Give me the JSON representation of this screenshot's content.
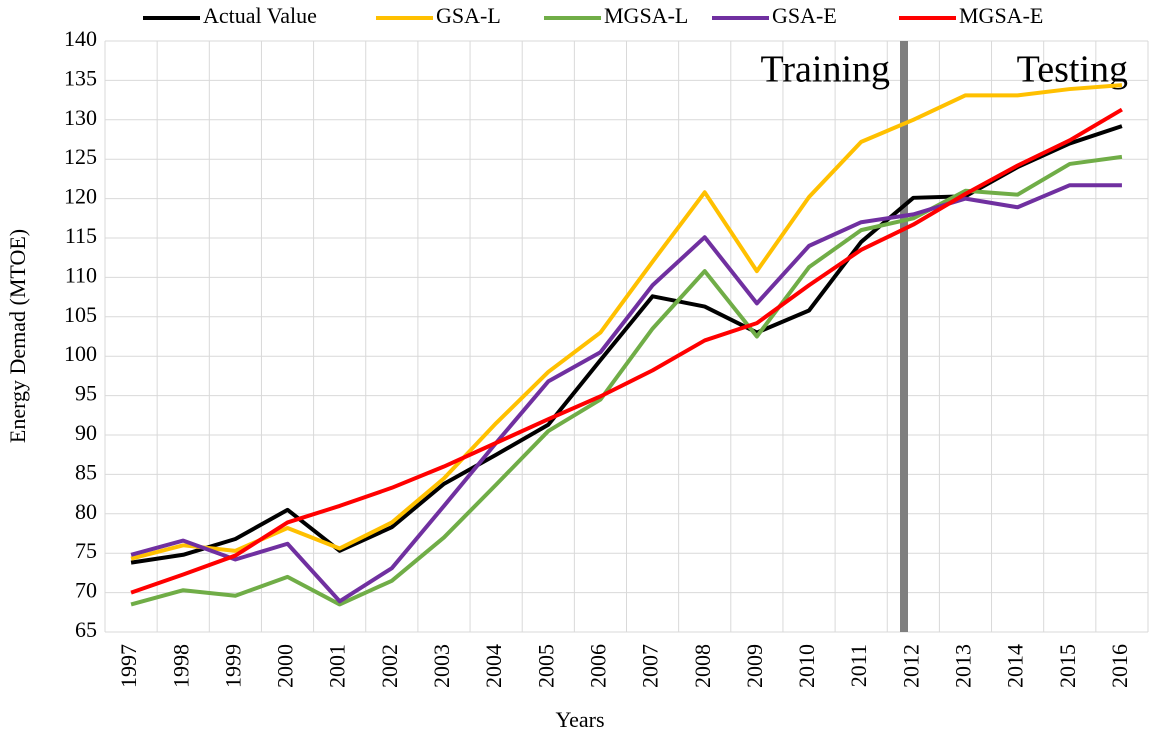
{
  "chart_data": {
    "type": "line",
    "x_label": "Years",
    "y_label": "Energy Demad (MTOE)",
    "annotations": [
      "Training",
      "Testing"
    ],
    "categories": [
      "1997",
      "1998",
      "1999",
      "2000",
      "2001",
      "2002",
      "2003",
      "2004",
      "2005",
      "2006",
      "2007",
      "2008",
      "2009",
      "2010",
      "2011",
      "2012",
      "2013",
      "2014",
      "2015",
      "2016"
    ],
    "series": [
      {
        "name": "Actual Value",
        "color": "#000000",
        "values": [
          73.8,
          74.8,
          76.8,
          80.5,
          75.3,
          78.3,
          83.8,
          87.5,
          91.3,
          99.5,
          107.6,
          106.3,
          103.0,
          105.8,
          114.5,
          120.1,
          120.3,
          124.0,
          127.0,
          129.2
        ]
      },
      {
        "name": "GSA-L",
        "color": "#ffc000",
        "values": [
          74.3,
          76.0,
          75.3,
          78.2,
          75.6,
          78.9,
          84.5,
          91.5,
          98.0,
          103.0,
          112.0,
          120.8,
          110.8,
          120.2,
          127.2,
          130.0,
          133.1,
          133.1,
          133.9,
          134.4
        ]
      },
      {
        "name": "MGSA-L",
        "color": "#70ad47",
        "values": [
          68.5,
          70.3,
          69.6,
          72.0,
          68.5,
          71.5,
          77.0,
          83.7,
          90.5,
          94.5,
          103.5,
          110.8,
          102.5,
          111.3,
          116.0,
          117.5,
          121.0,
          120.5,
          124.4,
          125.3
        ]
      },
      {
        "name": "GSA-E",
        "color": "#7030a0",
        "values": [
          74.8,
          76.6,
          74.2,
          76.2,
          68.9,
          73.1,
          81.0,
          89.0,
          96.8,
          100.5,
          109.0,
          115.1,
          106.7,
          114.0,
          117.0,
          118.0,
          120.0,
          118.9,
          121.7,
          121.7
        ]
      },
      {
        "name": "MGSA-E",
        "color": "#ff0000",
        "values": [
          70.0,
          72.3,
          74.7,
          78.9,
          81.0,
          83.3,
          86.0,
          89.0,
          92.0,
          94.9,
          98.2,
          102.0,
          104.2,
          109.0,
          113.5,
          116.7,
          120.6,
          124.2,
          127.4,
          131.3
        ]
      }
    ],
    "ylim": [
      65,
      140
    ],
    "yticks": [
      65,
      70,
      75,
      80,
      85,
      90,
      95,
      100,
      105,
      110,
      115,
      120,
      125,
      130,
      135,
      140
    ],
    "grid": true,
    "legend": "top"
  }
}
